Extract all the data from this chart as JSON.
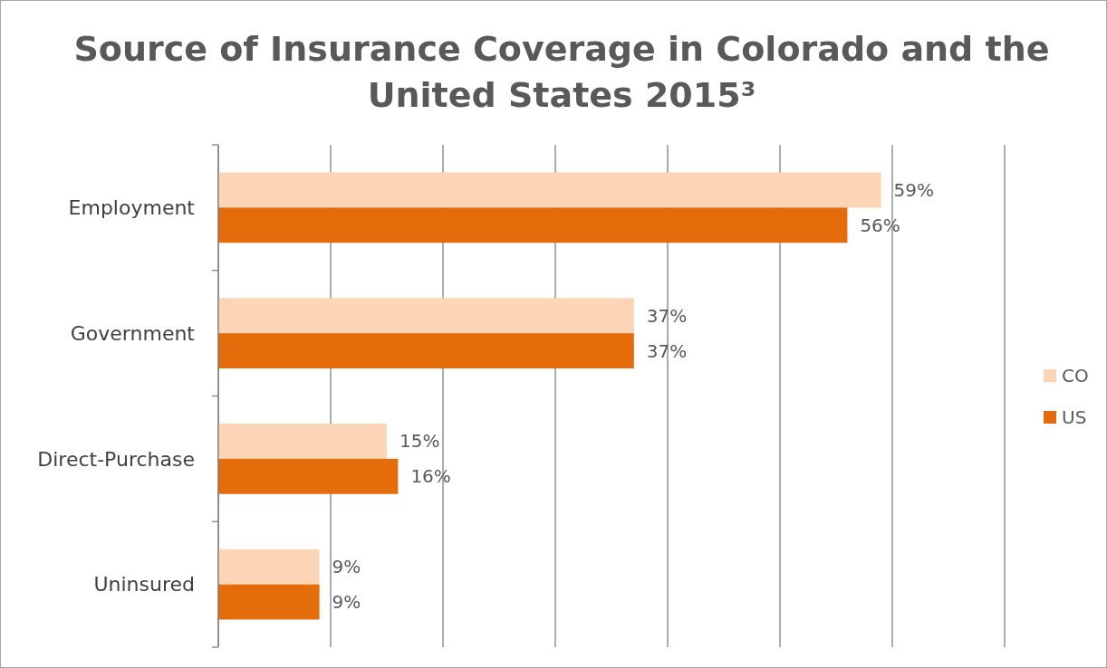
{
  "chart_data": {
    "type": "bar",
    "orientation": "horizontal",
    "title": "Source of Insurance Coverage in Colorado and the United States 2015³",
    "categories": [
      "Employment",
      "Government",
      "Direct-Purchase",
      "Uninsured"
    ],
    "series": [
      {
        "name": "CO",
        "color": "#fbd5b5",
        "values": [
          59,
          37,
          15,
          9
        ],
        "value_labels": [
          "59%",
          "37%",
          "15%",
          "9%"
        ]
      },
      {
        "name": "US",
        "color": "#e46c0a",
        "values": [
          56,
          37,
          16,
          9
        ],
        "value_labels": [
          "56%",
          "37%",
          "16%",
          "9%"
        ]
      }
    ],
    "xlim": [
      0,
      70
    ],
    "xticks": [
      {
        "value": 0,
        "label": null
      },
      {
        "value": 10,
        "label": null
      },
      {
        "value": 20,
        "label": null
      },
      {
        "value": 30,
        "label": null
      },
      {
        "value": 40,
        "label": null
      },
      {
        "value": 50,
        "label": null
      },
      {
        "value": 60,
        "label": null
      },
      {
        "value": 70,
        "label": null
      }
    ],
    "tick_labels": "y",
    "grid": "x",
    "legend": "right"
  }
}
